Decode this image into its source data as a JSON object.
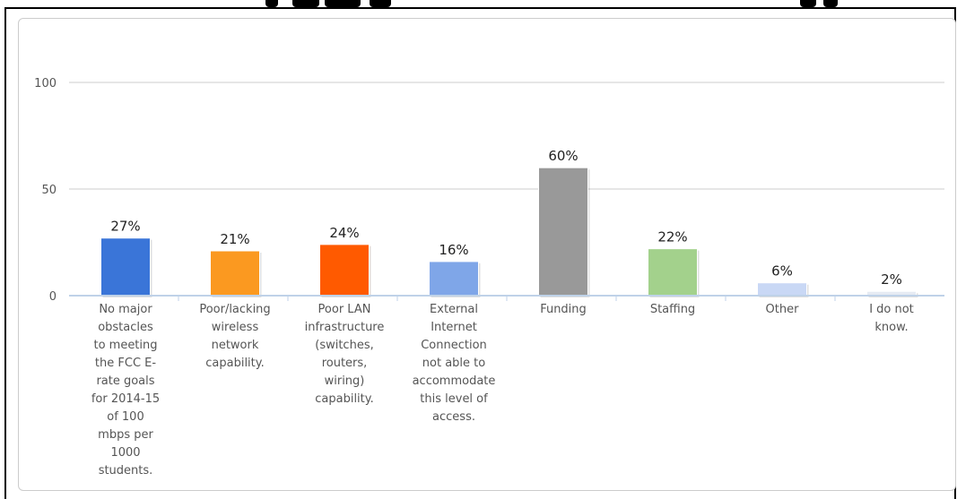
{
  "chart_data": {
    "type": "bar",
    "title": "",
    "xlabel": "",
    "ylabel": "",
    "ylim": [
      0,
      100
    ],
    "yticks": [
      0,
      50,
      100
    ],
    "grid": true,
    "legend": "none",
    "categories": [
      "No major obstacles to meeting the FCC E-rate goals for 2014-15 of 100 mbps per 1000 students.",
      "Poor/lacking wireless network capability.",
      "Poor LAN infrastructure (switches, routers, wiring) capability.",
      "External Internet Connection not able to accommodate this level of access.",
      "Funding",
      "Staffing",
      "Other",
      "I do not know."
    ],
    "category_lines": [
      [
        "No major",
        "obstacles",
        "to meeting",
        "the FCC E-",
        "rate goals",
        "for 2014-15",
        "of 100",
        "mbps per",
        "1000",
        "students."
      ],
      [
        "Poor/lacking",
        "wireless",
        "network",
        "capability."
      ],
      [
        "Poor LAN",
        "infrastructure",
        "(switches,",
        "routers,",
        "wiring)",
        "capability."
      ],
      [
        "External",
        "Internet",
        "Connection",
        "not able to",
        "accommodate",
        "this level of",
        "access."
      ],
      [
        "Funding"
      ],
      [
        "Staffing"
      ],
      [
        "Other"
      ],
      [
        "I do not",
        "know."
      ]
    ],
    "values": [
      27,
      21,
      24,
      16,
      60,
      22,
      6,
      2
    ],
    "value_labels": [
      "27%",
      "21%",
      "24%",
      "16%",
      "60%",
      "22%",
      "6%",
      "2%"
    ],
    "colors": [
      "#3a75d8",
      "#fb9920",
      "#ff5a00",
      "#7fa6e8",
      "#999999",
      "#a3d18c",
      "#c9d8f5",
      "#e6ebf3"
    ]
  }
}
